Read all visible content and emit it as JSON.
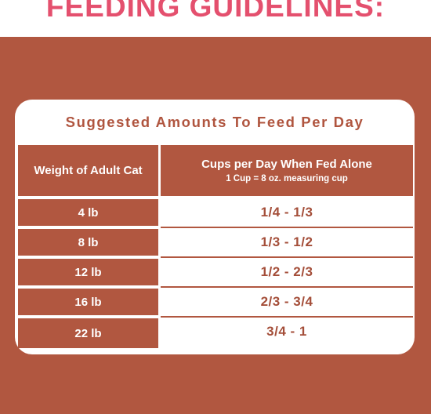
{
  "header": {
    "title": "FEEDING GUIDELINES:"
  },
  "table": {
    "title": "Suggested Amounts To Feed Per Day",
    "columns": {
      "weight": "Weight of Adult Cat",
      "cups": "Cups per Day When Fed Alone",
      "cups_note": "1 Cup = 8 oz. measuring cup"
    },
    "rows": [
      {
        "weight": "4 lb",
        "cups": "1/4 - 1/3"
      },
      {
        "weight": "8 lb",
        "cups": "1/3 - 1/2"
      },
      {
        "weight": "12 lb",
        "cups": "1/2 - 2/3"
      },
      {
        "weight": "16 lb",
        "cups": "2/3 - 3/4"
      },
      {
        "weight": "22 lb",
        "cups": "3/4 - 1"
      }
    ]
  },
  "colors": {
    "accent_pink": "#e4506e",
    "brand_brown": "#b15740"
  }
}
